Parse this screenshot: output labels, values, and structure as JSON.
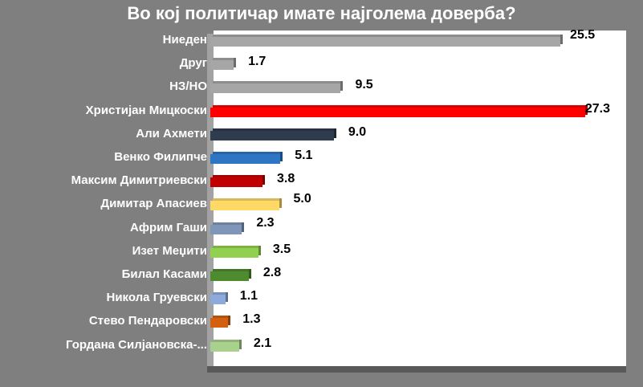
{
  "chart_data": {
    "type": "bar",
    "orientation": "horizontal",
    "title": "Во кој политичар имате најголема доверба?",
    "xlabel": "",
    "ylabel": "",
    "grid": false,
    "legend": null,
    "categories": [
      "Ниеден",
      "Друг",
      "НЗ/НО",
      "Христијан Мицкоски",
      "Али Ахмети",
      "Венко Филипче",
      "Максим Димитриевски",
      "Димитар Апасиев",
      "Африм Гаши",
      "Изет Меџити",
      "Билал Касами",
      "Никола Груевски",
      "Стево Пендаровски",
      "Гордана Силјановска-..."
    ],
    "values": [
      25.5,
      1.7,
      9.5,
      27.3,
      9.0,
      5.1,
      3.8,
      5.0,
      2.3,
      3.5,
      2.8,
      1.1,
      1.3,
      2.1
    ],
    "value_labels": [
      "25.5",
      "1.7",
      "9.5",
      "27.3",
      "9.0",
      "5.1",
      "3.8",
      "5.0",
      "2.3",
      "3.5",
      "2.8",
      "1.1",
      "1.3",
      "2.1"
    ],
    "colors": [
      "#a6a6a6",
      "#a6a6a6",
      "#a6a6a6",
      "#ff0000",
      "#2f3b4f",
      "#2e75c4",
      "#c00000",
      "#ffd966",
      "#8096b8",
      "#92d050",
      "#4e8a2e",
      "#8eaadb",
      "#d35f10",
      "#a9d18e"
    ],
    "xlim": [
      0,
      28
    ]
  },
  "header": {
    "title": "Во кој политичар имате најголема доверба?"
  },
  "rows": [
    {
      "label": "Ниеден",
      "value": "25.5"
    },
    {
      "label": "Друг",
      "value": "1.7"
    },
    {
      "label": "НЗ/НО",
      "value": "9.5"
    },
    {
      "label": "Христијан Мицкоски",
      "value": "27.3"
    },
    {
      "label": "Али Ахмети",
      "value": "9.0"
    },
    {
      "label": "Венко Филипче",
      "value": "5.1"
    },
    {
      "label": "Максим Димитриевски",
      "value": "3.8"
    },
    {
      "label": "Димитар Апасиев",
      "value": "5.0"
    },
    {
      "label": "Африм Гаши",
      "value": "2.3"
    },
    {
      "label": "Изет Меџити",
      "value": "3.5"
    },
    {
      "label": "Билал Касами",
      "value": "2.8"
    },
    {
      "label": "Никола Груевски",
      "value": "1.1"
    },
    {
      "label": "Стево Пендаровски",
      "value": "1.3"
    },
    {
      "label": "Гордана Силјановска-...",
      "value": "2.1"
    }
  ]
}
